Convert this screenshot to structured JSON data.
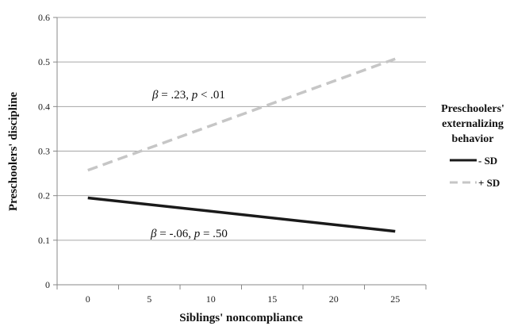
{
  "chart_data": {
    "type": "line",
    "xlabel": "Siblings' noncompliance",
    "ylabel": "Preschoolers' discipline",
    "xlim": [
      -2.5,
      27.5
    ],
    "ylim": [
      0,
      0.6
    ],
    "x_ticks": [
      "0",
      "5",
      "10",
      "15",
      "20",
      "25"
    ],
    "x_tick_values": [
      0,
      5,
      10,
      15,
      20,
      25
    ],
    "y_ticks": [
      "0",
      "0.1",
      "0.2",
      "0.3",
      "0.4",
      "0.5",
      "0.6"
    ],
    "y_tick_values": [
      0,
      0.1,
      0.2,
      0.3,
      0.4,
      0.5,
      0.6
    ],
    "grid": "horizontal",
    "legend": {
      "title_lines": [
        "Preschoolers'",
        "externalizing",
        "behavior"
      ],
      "position": "right"
    },
    "series": [
      {
        "name": "- SD",
        "x": [
          0,
          25
        ],
        "y": [
          0.195,
          0.12
        ],
        "color": "#1a1a1a",
        "dashed": false
      },
      {
        "name": "+ SD",
        "x": [
          0,
          25
        ],
        "y": [
          0.257,
          0.507
        ],
        "color": "#c6c6c6",
        "dashed": true
      }
    ],
    "annotations": [
      {
        "symbol": "β",
        "text": " = .23, ",
        "p": "p",
        "rest": " < .01"
      },
      {
        "symbol": "β",
        "text": " = -.06, ",
        "p": "p",
        "rest": " = .50"
      }
    ]
  }
}
